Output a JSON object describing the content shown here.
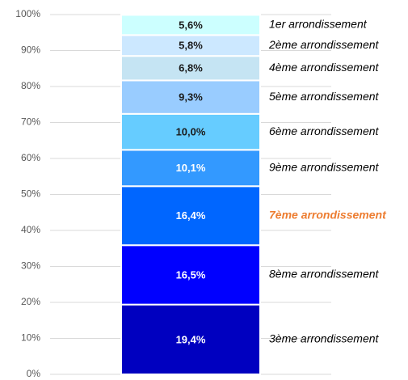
{
  "chart_data": {
    "type": "stacked_bar",
    "categories": [
      null
    ],
    "ylim": [
      0,
      100
    ],
    "yticks": [
      {
        "value": 0,
        "label": "0%"
      },
      {
        "value": 10,
        "label": "10%"
      },
      {
        "value": 20,
        "label": "20%"
      },
      {
        "value": 30,
        "label": "30%"
      },
      {
        "value": 40,
        "label": "40%"
      },
      {
        "value": 50,
        "label": "50%"
      },
      {
        "value": 60,
        "label": "60%"
      },
      {
        "value": 70,
        "label": "70%"
      },
      {
        "value": 80,
        "label": "80%"
      },
      {
        "value": 90,
        "label": "90%"
      },
      {
        "value": 100,
        "label": "100%"
      }
    ],
    "grid": true,
    "series": [
      {
        "name": "3ème arrondissement",
        "color": "#0000c0",
        "values": [
          19.4
        ],
        "value_labels": [
          "19,4%"
        ]
      },
      {
        "name": "8ème arrondissement",
        "color": "#0000ff",
        "values": [
          16.5
        ],
        "value_labels": [
          "16,5%"
        ]
      },
      {
        "name": "7ème arrondissement",
        "color": "#0066ff",
        "values": [
          16.4
        ],
        "value_labels": [
          "16,4%"
        ],
        "label_color": "#ed7d31"
      },
      {
        "name": "9ème arrondissement",
        "color": "#3399ff",
        "values": [
          10.1
        ],
        "value_labels": [
          "10,1%"
        ]
      },
      {
        "name": "6ème arrondissement",
        "color": "#66ccff",
        "values": [
          10.0
        ],
        "value_labels": [
          "10,0%"
        ]
      },
      {
        "name": "5ème arrondissement",
        "color": "#99ccff",
        "values": [
          9.3
        ],
        "value_labels": [
          "9,3%"
        ]
      },
      {
        "name": "4ème arrondissement",
        "color": "#c5e4f3",
        "values": [
          6.8
        ],
        "value_labels": [
          "6,8%"
        ]
      },
      {
        "name": "2ème arrondissement",
        "color": "#cce8ff",
        "values": [
          5.8
        ],
        "value_labels": [
          "5,8%"
        ]
      },
      {
        "name": "1er arrondissement",
        "color": "#ccffff",
        "values": [
          5.6
        ],
        "value_labels": [
          "5,6%"
        ]
      }
    ]
  }
}
